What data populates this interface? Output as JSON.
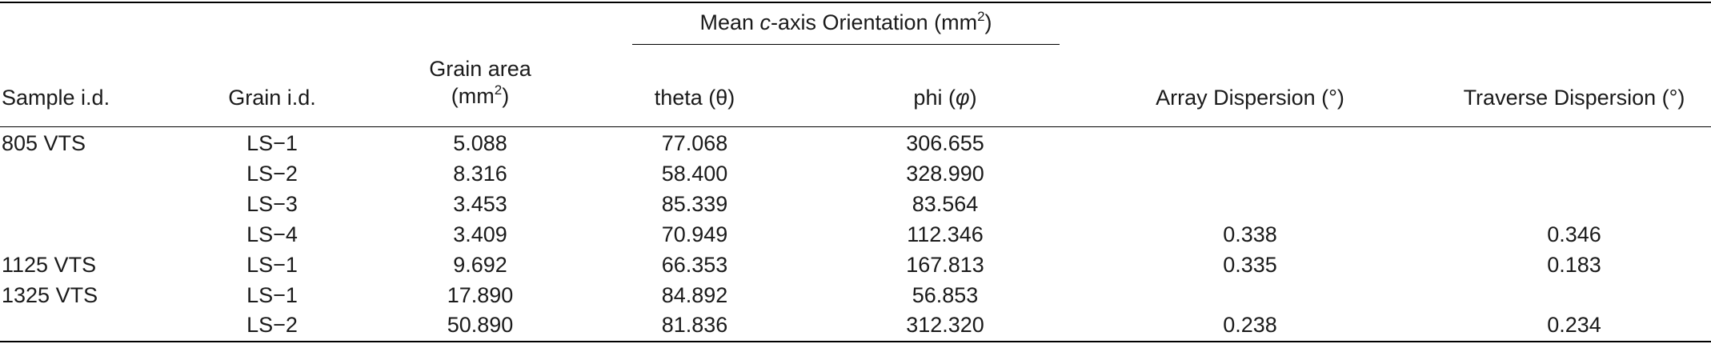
{
  "table": {
    "group_header": {
      "prefix": "Mean ",
      "italic": "c",
      "suffix": "-axis Orientation (mm",
      "sup": "2",
      "close": ")"
    },
    "headers": {
      "sample": "Sample i.d.",
      "grain": "Grain i.d.",
      "area_line1": "Grain area",
      "area_line2_prefix": "(mm",
      "area_line2_sup": "2",
      "area_line2_close": ")",
      "theta": "theta (θ)",
      "phi_prefix": "phi (",
      "phi_symbol": "φ",
      "phi_close": ")",
      "array": "Array Dispersion (°)",
      "traverse": "Traverse Dispersion (°)"
    },
    "rows": [
      {
        "sample": "805 VTS",
        "grain": "LS−1",
        "area": "5.088",
        "theta": "77.068",
        "phi": "306.655",
        "array": "",
        "traverse": ""
      },
      {
        "sample": "",
        "grain": "LS−2",
        "area": "8.316",
        "theta": "58.400",
        "phi": "328.990",
        "array": "",
        "traverse": ""
      },
      {
        "sample": "",
        "grain": "LS−3",
        "area": "3.453",
        "theta": "85.339",
        "phi": "83.564",
        "array": "",
        "traverse": ""
      },
      {
        "sample": "",
        "grain": "LS−4",
        "area": "3.409",
        "theta": "70.949",
        "phi": "112.346",
        "array": "0.338",
        "traverse": "0.346"
      },
      {
        "sample": "1125 VTS",
        "grain": "LS−1",
        "area": "9.692",
        "theta": "66.353",
        "phi": "167.813",
        "array": "0.335",
        "traverse": "0.183"
      },
      {
        "sample": "1325 VTS",
        "grain": "LS−1",
        "area": "17.890",
        "theta": "84.892",
        "phi": "56.853",
        "array": "",
        "traverse": ""
      },
      {
        "sample": "",
        "grain": "LS−2",
        "area": "50.890",
        "theta": "81.836",
        "phi": "312.320",
        "array": "0.238",
        "traverse": "0.234"
      }
    ]
  }
}
